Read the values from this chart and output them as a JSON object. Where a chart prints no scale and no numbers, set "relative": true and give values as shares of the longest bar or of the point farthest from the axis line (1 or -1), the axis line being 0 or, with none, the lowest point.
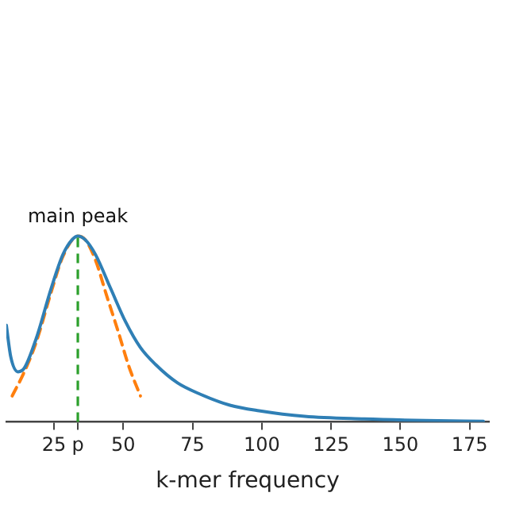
{
  "chart_data": {
    "type": "line",
    "relative": true,
    "xlabel": "k-mer frequency",
    "xlim": [
      7.8,
      182
    ],
    "xticks": [
      25,
      {
        "value": 33.6,
        "label": "p"
      },
      50,
      75,
      100,
      125,
      150,
      175
    ],
    "grid": false,
    "legend": false,
    "marker": "none",
    "series": [
      {
        "color": "#2f7fb5",
        "line_style": "solid",
        "x": [
          7.8,
          9.4,
          12,
          14.3,
          18.6,
          24,
          28.2,
          31.5,
          33.6,
          36.3,
          40,
          45.4,
          50.8,
          56.2,
          61.6,
          69.6,
          77.7,
          88.5,
          99,
          115.5,
          137,
          159,
          180
        ],
        "values": [
          0.52,
          0.35,
          0.27,
          0.29,
          0.45,
          0.72,
          0.9,
          0.98,
          1,
          0.98,
          0.9,
          0.72,
          0.54,
          0.4,
          0.31,
          0.21,
          0.15,
          0.09,
          0.06,
          0.03,
          0.016,
          0.008,
          0.004
        ]
      },
      {
        "color": "#ff7f0e",
        "line_style": "dashed",
        "x": [
          9.9,
          14.3,
          18.6,
          24,
          28.2,
          33.6,
          36.3,
          40,
          44,
          48.1,
          52,
          56.2
        ],
        "values": [
          0.14,
          0.27,
          0.43,
          0.7,
          0.89,
          1,
          0.98,
          0.87,
          0.68,
          0.49,
          0.3,
          0.14
        ]
      }
    ],
    "ref_lines": [
      {
        "axis": "x",
        "value": 33.6,
        "color": "#2ca02c",
        "line_style": "dashed"
      }
    ],
    "annotations": [
      {
        "text": "main peak",
        "x": 33.6,
        "y": 1
      }
    ]
  }
}
